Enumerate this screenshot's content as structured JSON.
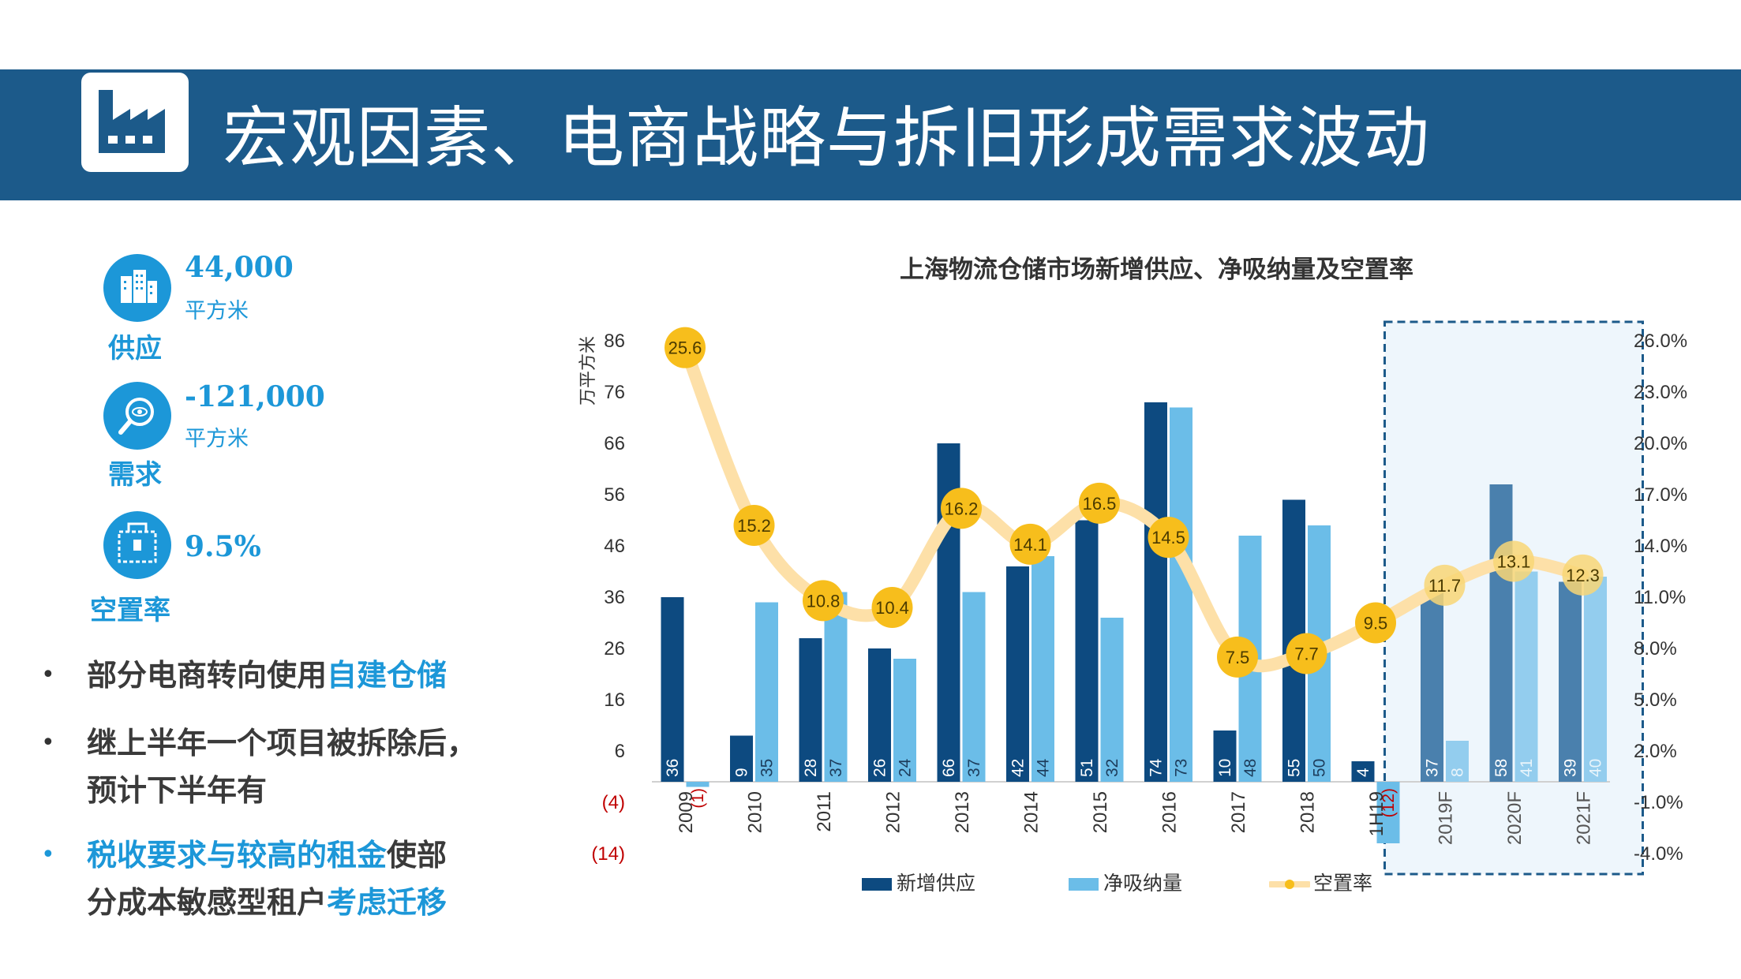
{
  "header": {
    "title": "宏观因素、电商战略与拆旧形成需求波动"
  },
  "kpis": [
    {
      "value": "44,000",
      "unit": "平方米",
      "label": "供应",
      "icon": "building-icon"
    },
    {
      "value": "-121,000",
      "unit": "平方米",
      "label": "需求",
      "icon": "magnifier-eye-icon"
    },
    {
      "value": "9.5%",
      "unit": "",
      "label": "空置率",
      "icon": "vacancy-box-icon"
    }
  ],
  "bullets": [
    {
      "parts": [
        "部分电商转向使用",
        "自建仓储"
      ]
    },
    {
      "line1": "继上半年一个项目被拆除后，",
      "line2": "预计下半年有"
    },
    {
      "line1_hl": "税收要求与较高的租金",
      "line1_rest": "使部",
      "line2_pre": "分成本敏感型租户",
      "line2_hl": "考虑迁移"
    }
  ],
  "colors": {
    "header": "#1c5a8a",
    "accent": "#1c97d8",
    "supply": "#0d4a80",
    "absorption": "#6bbde8",
    "vacancy_line": "#fde0a8",
    "vacancy_marker": "#f7be1c",
    "forecast_box": "#1c5a8a"
  },
  "chart_data": {
    "type": "bar",
    "title": "上海物流仓储市场新增供应、净吸纳量及空置率",
    "ylabel": "万平方米",
    "categories": [
      "2009",
      "2010",
      "2011",
      "2012",
      "2013",
      "2014",
      "2015",
      "2016",
      "2017",
      "2018",
      "1H19",
      "2019F",
      "2020F",
      "2021F"
    ],
    "forecast_categories": [
      "2019F",
      "2020F",
      "2021F"
    ],
    "series": [
      {
        "name": "新增供应",
        "type": "bar",
        "values": [
          36,
          9,
          28,
          26,
          66,
          42,
          51,
          74,
          10,
          55,
          4,
          37,
          58,
          39
        ],
        "labels": [
          "36",
          "9",
          "28",
          "26",
          "66",
          "42",
          "51",
          "74",
          "10",
          "55",
          "4",
          "37",
          "58",
          "39"
        ]
      },
      {
        "name": "净吸纳量",
        "type": "bar",
        "values": [
          -1,
          35,
          37,
          24,
          37,
          44,
          32,
          73,
          48,
          50,
          -12,
          8,
          41,
          40
        ],
        "labels": [
          "(1)",
          "35",
          "37",
          "24",
          "37",
          "44",
          "32",
          "73",
          "48",
          "50",
          "(12)",
          "8",
          "41",
          "40"
        ]
      },
      {
        "name": "空置率",
        "type": "line",
        "axis": "right",
        "values": [
          25.6,
          15.2,
          10.8,
          10.4,
          16.2,
          14.1,
          16.5,
          14.5,
          7.5,
          7.7,
          9.5,
          11.7,
          13.1,
          12.3
        ],
        "labels": [
          "25.6",
          "15.2",
          "10.8",
          "10.4",
          "16.2",
          "14.1",
          "16.5",
          "14.5",
          "7.5",
          "7.7",
          "9.5",
          "11.7",
          "13.1",
          "12.3"
        ]
      }
    ],
    "y_left": {
      "ticks": [
        86,
        76,
        66,
        56,
        46,
        36,
        26,
        16,
        6,
        -4,
        -14
      ],
      "tick_labels": [
        "86",
        "76",
        "66",
        "56",
        "46",
        "36",
        "26",
        "16",
        "6",
        "(4)",
        "(14)"
      ],
      "range": [
        -14,
        86
      ]
    },
    "y_right": {
      "ticks": [
        26,
        23,
        20,
        17,
        14,
        11,
        8,
        5,
        2,
        -1,
        -4
      ],
      "tick_labels": [
        "26.0%",
        "23.0%",
        "20.0%",
        "17.0%",
        "14.0%",
        "11.0%",
        "8.0%",
        "5.0%",
        "2.0%",
        "-1.0%",
        "-4.0%"
      ],
      "range": [
        -4,
        26
      ]
    },
    "legend": [
      "新增供应",
      "净吸纳量",
      "空置率"
    ],
    "legend_position": "bottom",
    "grid": false
  }
}
